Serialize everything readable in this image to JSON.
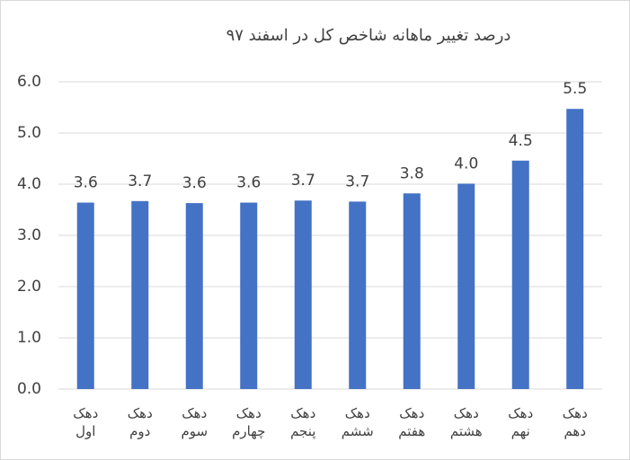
{
  "chart_data": {
    "type": "bar",
    "title": "درصد تغییر ماهانه شاخص کل در اسفند ۹۷",
    "categories": [
      "دهک اول",
      "دهک دوم",
      "دهک سوم",
      "دهک چهارم",
      "دهک پنجم",
      "دهک ششم",
      "دهک هفتم",
      "دهک هشتم",
      "دهک نهم",
      "دهک دهم"
    ],
    "values": [
      3.64,
      3.67,
      3.63,
      3.64,
      3.68,
      3.66,
      3.82,
      4.01,
      4.46,
      5.47
    ],
    "value_labels": [
      "3.6",
      "3.7",
      "3.6",
      "3.6",
      "3.7",
      "3.7",
      "3.8",
      "4.0",
      "4.5",
      "5.5"
    ],
    "color": "#4472c4",
    "ylim": [
      0,
      6
    ],
    "yticks": [
      {
        "value": 0,
        "label": "0.0"
      },
      {
        "value": 1,
        "label": "1.0"
      },
      {
        "value": 2,
        "label": "2.0"
      },
      {
        "value": 3,
        "label": "3.0"
      },
      {
        "value": 4,
        "label": "4.0"
      },
      {
        "value": 5,
        "label": "5.0"
      },
      {
        "value": 6,
        "label": "6.0"
      }
    ],
    "grid": true
  }
}
